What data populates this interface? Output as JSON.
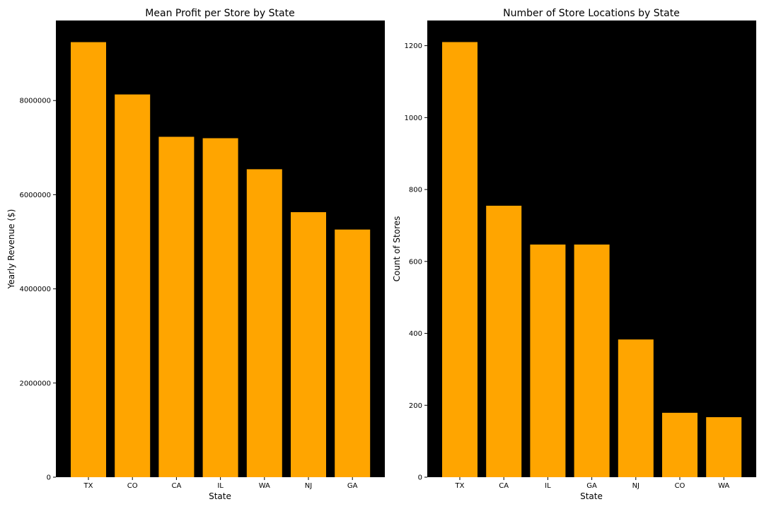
{
  "chart_data": [
    {
      "type": "bar",
      "title": "Mean Profit per Store by State",
      "xlabel": "State",
      "ylabel": "Yearly Revenue ($)",
      "categories": [
        "TX",
        "CO",
        "CA",
        "IL",
        "WA",
        "NJ",
        "GA"
      ],
      "values": [
        9240000,
        8130000,
        7230000,
        7200000,
        6540000,
        5630000,
        5260000
      ],
      "ylim": [
        0,
        9700000
      ],
      "yticks": [
        0,
        2000000,
        4000000,
        6000000,
        8000000
      ],
      "ytick_labels": [
        "0",
        "2000000",
        "4000000",
        "6000000",
        "8000000"
      ],
      "bar_color": "#FFA500",
      "background_color": "#000000",
      "grid": false
    },
    {
      "type": "bar",
      "title": "Number of Store Locations by State",
      "xlabel": "State",
      "ylabel": "Count of Stores",
      "categories": [
        "TX",
        "CA",
        "IL",
        "GA",
        "NJ",
        "CO",
        "WA"
      ],
      "values": [
        1210,
        755,
        647,
        647,
        383,
        179,
        167
      ],
      "ylim": [
        0,
        1270
      ],
      "yticks": [
        0,
        200,
        400,
        600,
        800,
        1000,
        1200
      ],
      "ytick_labels": [
        "0",
        "200",
        "400",
        "600",
        "800",
        "1000",
        "1200"
      ],
      "bar_color": "#FFA500",
      "background_color": "#000000",
      "grid": false
    }
  ]
}
